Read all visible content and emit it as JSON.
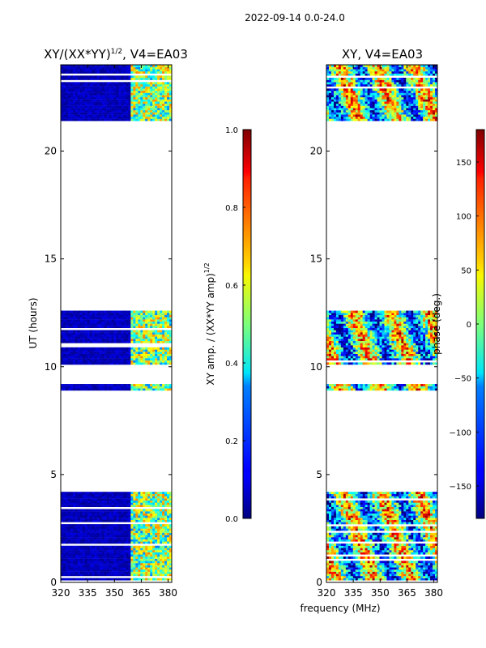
{
  "suptitle": "2022-09-14 0.0-24.0",
  "xlabel": "frequency (MHz)",
  "chart_data": [
    {
      "type": "heatmap",
      "title_main": "XY/(XX*YY)",
      "title_sup": "1/2",
      "title_tail": ", V4=EA03",
      "ylabel": "UT (hours)",
      "xlim": [
        320,
        382
      ],
      "ylim": [
        0,
        24
      ],
      "xticks": [
        320,
        335,
        350,
        365,
        380
      ],
      "yticks": [
        0,
        5,
        10,
        15,
        20
      ],
      "data_bands": [
        [
          0.1,
          4.2
        ],
        [
          8.9,
          9.2
        ],
        [
          10.1,
          12.6
        ],
        [
          21.4,
          24.0
        ]
      ],
      "colorbar": {
        "label_main": "XY amp. / (XX*YY amp)",
        "label_sup": "1/2",
        "range": [
          0.0,
          1.0
        ],
        "ticks": [
          "0.0",
          "0.2",
          "0.4",
          "0.6",
          "0.8",
          "1.0"
        ],
        "tick_values": [
          0.0,
          0.2,
          0.4,
          0.6,
          0.8,
          1.0
        ]
      }
    },
    {
      "type": "heatmap",
      "title": "XY, V4=EA03",
      "xlim": [
        320,
        382
      ],
      "ylim": [
        0,
        24
      ],
      "xticks": [
        320,
        335,
        350,
        365,
        380
      ],
      "yticks": [
        0,
        5,
        10,
        15,
        20
      ],
      "data_bands": [
        [
          0.1,
          4.2
        ],
        [
          8.9,
          9.2
        ],
        [
          10.1,
          12.6
        ],
        [
          21.4,
          24.0
        ]
      ],
      "colorbar": {
        "label": "phase (deg.)",
        "range": [
          -180,
          180
        ],
        "ticks": [
          "−150",
          "−100",
          "−50",
          "0",
          "50",
          "100",
          "150"
        ],
        "tick_values": [
          -150,
          -100,
          -50,
          0,
          50,
          100,
          150
        ]
      }
    }
  ]
}
